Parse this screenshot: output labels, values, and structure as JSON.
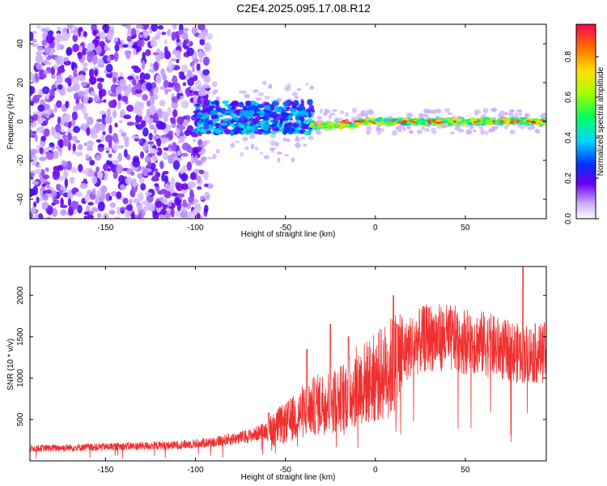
{
  "title": "C2E4.2025.095.17.08.R12",
  "colors": {
    "spectrogram_low": "#e8d8ff",
    "spectrogram_mid": "#7a20e8",
    "snr_line": "#f03030"
  },
  "chart_data": [
    {
      "type": "heatmap",
      "xlabel": "Height of straight line (km)",
      "ylabel": "Frequency (Hz)",
      "xlim": [
        -192,
        95
      ],
      "ylim": [
        -50,
        50
      ],
      "x_ticks": [
        -150,
        -100,
        -50,
        0,
        50
      ],
      "y_ticks": [
        -40,
        -20,
        0,
        20,
        40
      ],
      "colorbar": {
        "label": "Normalized spectral amplitude",
        "range": [
          0,
          1
        ],
        "ticks": [
          "0.0",
          "0.2",
          "0.4",
          "0.6",
          "0.8"
        ]
      },
      "regions": [
        {
          "x_range": [
            -192,
            -100
          ],
          "freq_spread": [
            -50,
            50
          ],
          "amplitude": 0.05
        },
        {
          "x_range": [
            -100,
            -35
          ],
          "freq_center": 2,
          "freq_spread": [
            -8,
            8
          ],
          "amplitude": 0.4
        },
        {
          "x_range": [
            -35,
            95
          ],
          "freq_center": 0,
          "freq_spread": [
            -3,
            3
          ],
          "amplitude": 0.7
        }
      ]
    },
    {
      "type": "line",
      "xlabel": "Height of straight line (km)",
      "ylabel": "SNR (10 * v/v)",
      "xlim": [
        -192,
        95
      ],
      "ylim": [
        0,
        2350
      ],
      "x_ticks": [
        -150,
        -100,
        -50,
        0,
        50
      ],
      "y_ticks": [
        500,
        1000,
        1500,
        2000
      ],
      "series": [
        {
          "trend_x": [
            -192,
            -150,
            -110,
            -90,
            -70,
            -50,
            -40,
            -30,
            -20,
            -10,
            0,
            10,
            20,
            30,
            40,
            50,
            60,
            70,
            80,
            90,
            95
          ],
          "trend_y": [
            150,
            170,
            190,
            230,
            300,
            450,
            600,
            700,
            750,
            900,
            1000,
            1150,
            1400,
            1500,
            1480,
            1450,
            1420,
            1350,
            1300,
            1300,
            1320
          ],
          "spikes": [
            {
              "x": -38,
              "y": 1350
            },
            {
              "x": -25,
              "y": 1650
            },
            {
              "x": -15,
              "y": 1500
            },
            {
              "x": 10,
              "y": 2000
            },
            {
              "x": 12,
              "y": 1650
            },
            {
              "x": 82,
              "y": 2340
            }
          ]
        }
      ]
    }
  ]
}
